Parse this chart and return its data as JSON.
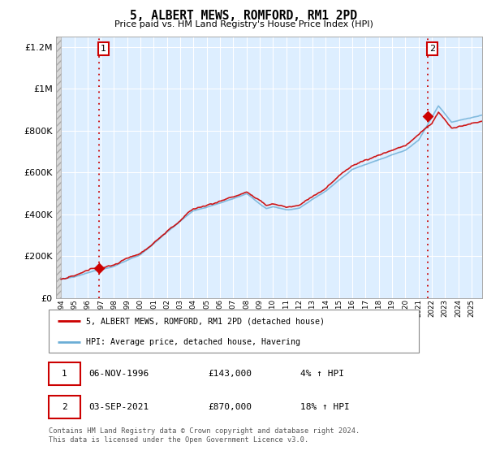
{
  "title": "5, ALBERT MEWS, ROMFORD, RM1 2PD",
  "subtitle": "Price paid vs. HM Land Registry's House Price Index (HPI)",
  "sale1_date": "06-NOV-1996",
  "sale1_price": 143000,
  "sale1_hpi": "4% ↑ HPI",
  "sale2_date": "03-SEP-2021",
  "sale2_price": 870000,
  "sale2_hpi": "18% ↑ HPI",
  "legend_line1": "5, ALBERT MEWS, ROMFORD, RM1 2PD (detached house)",
  "legend_line2": "HPI: Average price, detached house, Havering",
  "footer": "Contains HM Land Registry data © Crown copyright and database right 2024.\nThis data is licensed under the Open Government Licence v3.0.",
  "hpi_color": "#6baed6",
  "hpi_fill_color": "#c6dbef",
  "chart_bg": "#ddeeff",
  "price_color": "#cc0000",
  "sale_dot_color": "#cc0000",
  "annotation_color": "#cc0000",
  "grid_color": "#ffffff",
  "hatch_color": "#b0b0b0",
  "ylim": [
    0,
    1250000
  ],
  "yticks": [
    0,
    200000,
    400000,
    600000,
    800000,
    1000000,
    1200000
  ],
  "ytick_labels": [
    "£0",
    "£200K",
    "£400K",
    "£600K",
    "£800K",
    "£1M",
    "£1.2M"
  ],
  "xstart": 1994,
  "xend": 2026,
  "background_color": "#ffffff"
}
